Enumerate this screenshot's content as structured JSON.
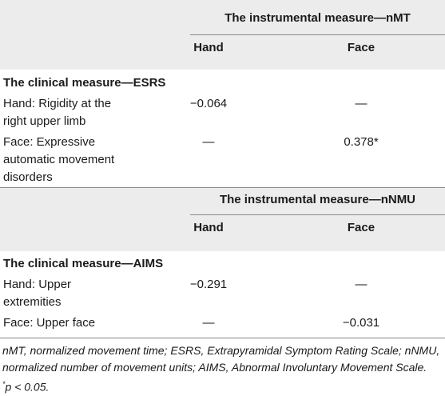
{
  "sections": [
    {
      "instrumental_header": "The instrumental measure—nMT",
      "col_hand": "Hand",
      "col_face": "Face",
      "clinical_header": "The clinical measure—ESRS",
      "rows": [
        {
          "label_lines": [
            "Hand: Rigidity at the",
            "right upper limb"
          ],
          "hand": "−0.064",
          "face": "—"
        },
        {
          "label_lines": [
            "Face: Expressive",
            "automatic movement",
            "disorders"
          ],
          "hand": "—",
          "face": "0.378*"
        }
      ]
    },
    {
      "instrumental_header": "The instrumental measure—nNMU",
      "col_hand": "Hand",
      "col_face": "Face",
      "clinical_header": "The clinical measure—AIMS",
      "rows": [
        {
          "label_lines": [
            "Hand: Upper",
            "extremities"
          ],
          "hand": "−0.291",
          "face": "—"
        },
        {
          "label_lines": [
            "Face: Upper face"
          ],
          "hand": "—",
          "face": "−0.031"
        }
      ]
    }
  ],
  "footnote": {
    "line1": "nMT, normalized movement time; ESRS, Extrapyramidal Symptom Rating Scale; nNMU,",
    "line2": "normalized number of movement units; AIMS, Abnormal Involuntary Movement Scale.",
    "star": "*",
    "line3": "p < 0.05."
  }
}
